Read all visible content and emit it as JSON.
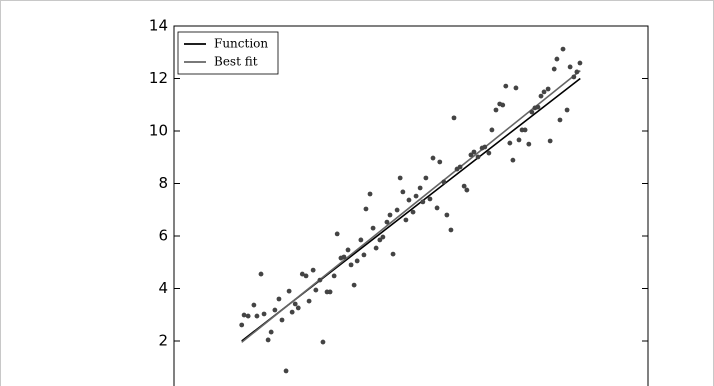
{
  "chart_data": {
    "type": "scatter",
    "xlim": [
      -2,
      12
    ],
    "ylim": [
      0,
      14
    ],
    "yticks": [
      2,
      4,
      6,
      8,
      10,
      12,
      14
    ],
    "legend": "upper left",
    "series": [
      {
        "name": "Function",
        "type": "line",
        "color": "#000000",
        "x": [
          0,
          10
        ],
        "values": [
          2,
          12
        ]
      },
      {
        "name": "Best fit",
        "type": "line",
        "color": "#666666",
        "x": [
          0,
          10
        ],
        "values": [
          1.95,
          12.3
        ]
      },
      {
        "type": "scatter",
        "color": "#444444",
        "x": [
          0.0,
          0.07,
          0.19,
          0.36,
          0.45,
          0.57,
          0.66,
          0.78,
          0.87,
          0.98,
          1.1,
          1.19,
          1.31,
          1.4,
          1.49,
          1.58,
          1.67,
          1.79,
          1.9,
          1.99,
          2.11,
          2.19,
          2.31,
          2.4,
          2.52,
          2.61,
          2.73,
          2.82,
          2.93,
          3.02,
          3.14,
          3.23,
          3.32,
          3.41,
          3.52,
          3.61,
          3.67,
          3.79,
          3.88,
          3.97,
          4.08,
          4.17,
          4.29,
          4.38,
          4.47,
          4.59,
          4.68,
          4.76,
          4.85,
          4.94,
          5.06,
          5.15,
          5.27,
          5.35,
          5.44,
          5.56,
          5.65,
          5.77,
          5.85,
          5.97,
          6.06,
          6.18,
          6.27,
          6.36,
          6.45,
          6.57,
          6.65,
          6.77,
          6.86,
          6.98,
          7.1,
          7.18,
          7.3,
          7.39,
          7.51,
          7.62,
          7.71,
          7.8,
          7.92,
          8.01,
          8.1,
          8.19,
          8.28,
          8.37,
          8.48,
          8.57,
          8.66,
          8.75,
          8.84,
          8.93,
          9.05,
          9.11,
          9.23,
          9.31,
          9.4,
          9.49,
          9.61,
          9.7,
          9.81,
          9.9,
          9.99
        ],
        "values": [
          2.61,
          2.99,
          2.95,
          3.37,
          2.95,
          4.55,
          3.03,
          2.04,
          2.34,
          3.18,
          3.6,
          2.8,
          0.86,
          3.9,
          3.1,
          3.41,
          3.26,
          4.55,
          4.48,
          3.52,
          4.7,
          3.94,
          4.32,
          1.96,
          3.87,
          3.87,
          4.48,
          6.08,
          5.16,
          5.2,
          5.47,
          4.9,
          4.13,
          5.05,
          5.85,
          5.28,
          7.03,
          7.6,
          6.3,
          5.54,
          5.85,
          5.96,
          6.53,
          6.8,
          5.31,
          6.99,
          8.21,
          7.68,
          6.61,
          7.37,
          6.91,
          7.52,
          7.83,
          7.3,
          8.21,
          7.41,
          8.97,
          7.07,
          8.82,
          8.06,
          6.8,
          6.23,
          10.5,
          8.55,
          8.63,
          7.9,
          7.75,
          9.09,
          9.2,
          9.01,
          9.35,
          9.39,
          9.16,
          10.04,
          10.8,
          11.03,
          10.99,
          11.71,
          9.54,
          8.89,
          11.64,
          9.66,
          10.04,
          10.04,
          9.5,
          10.72,
          10.88,
          10.91,
          11.33,
          11.49,
          11.6,
          9.62,
          12.36,
          12.74,
          10.42,
          13.12,
          10.8,
          12.44,
          12.06,
          12.25,
          12.59
        ]
      }
    ]
  }
}
